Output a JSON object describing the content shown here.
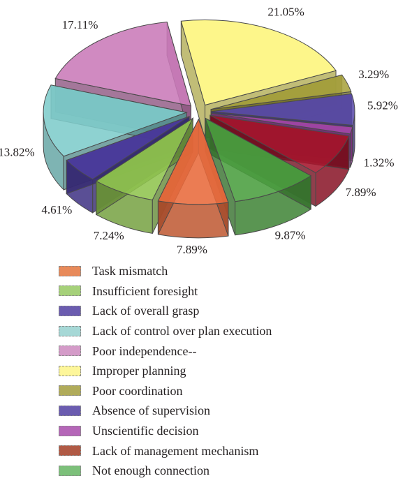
{
  "chart_data": {
    "type": "pie",
    "title": "",
    "slices": [
      {
        "label": "Task mismatch",
        "value": 7.89,
        "value_label": "7.89%",
        "color": "#e86a3b"
      },
      {
        "label": "Insufficient foresight",
        "value": 7.24,
        "value_label": "7.24%",
        "color": "#8fc44f"
      },
      {
        "label": "Lack of overall grasp",
        "value": 4.61,
        "value_label": "4.61%",
        "color": "#4b3a9e"
      },
      {
        "label": "Lack of control over plan execution",
        "value": 13.82,
        "value_label": "13.82%",
        "color": "#7ecccb"
      },
      {
        "label": "Poor independence--",
        "value": 17.11,
        "value_label": "17.11%",
        "color": "#c97ab8"
      },
      {
        "label": "Improper planning",
        "value": 21.05,
        "value_label": "21.05%",
        "color": "#fdf57a"
      },
      {
        "label": "Poor coordination",
        "value": 3.29,
        "value_label": "3.29%",
        "color": "#a8a33e"
      },
      {
        "label": "Absence of supervision",
        "value": 5.92,
        "value_label": "5.92%",
        "color": "#5a4ba8"
      },
      {
        "label": "Unscientific decision",
        "value": 1.32,
        "value_label": "1.32%",
        "color": "#a447a8"
      },
      {
        "label": "Lack of management mechanism",
        "value": 7.89,
        "value_label": "7.89%",
        "color": "#a5162c"
      },
      {
        "label": "Not enough connection",
        "value": 9.87,
        "value_label": "9.87%",
        "color": "#4a9e3f"
      }
    ],
    "legend_position": "bottom",
    "style": "3d-exploded"
  },
  "legend": {
    "items": [
      {
        "label": "Task mismatch",
        "color": "#e88a5a"
      },
      {
        "label": "Insufficient foresight",
        "color": "#a6d17a"
      },
      {
        "label": "Lack of overall grasp",
        "color": "#6b5cb0"
      },
      {
        "label": "Lack of control over plan execution",
        "color": "#a6d8d6"
      },
      {
        "label": "Poor independence--",
        "color": "#d49bc8"
      },
      {
        "label": "Improper planning",
        "color": "#fdf69a"
      },
      {
        "label": "Poor coordination",
        "color": "#b0ab5a"
      },
      {
        "label": "Absence of supervision",
        "color": "#6b5cb0"
      },
      {
        "label": "Unscientific decision",
        "color": "#b566b8"
      },
      {
        "label": "Lack of management mechanism",
        "color": "#b05a45"
      },
      {
        "label": "Not enough connection",
        "color": "#7cc07a"
      }
    ]
  }
}
